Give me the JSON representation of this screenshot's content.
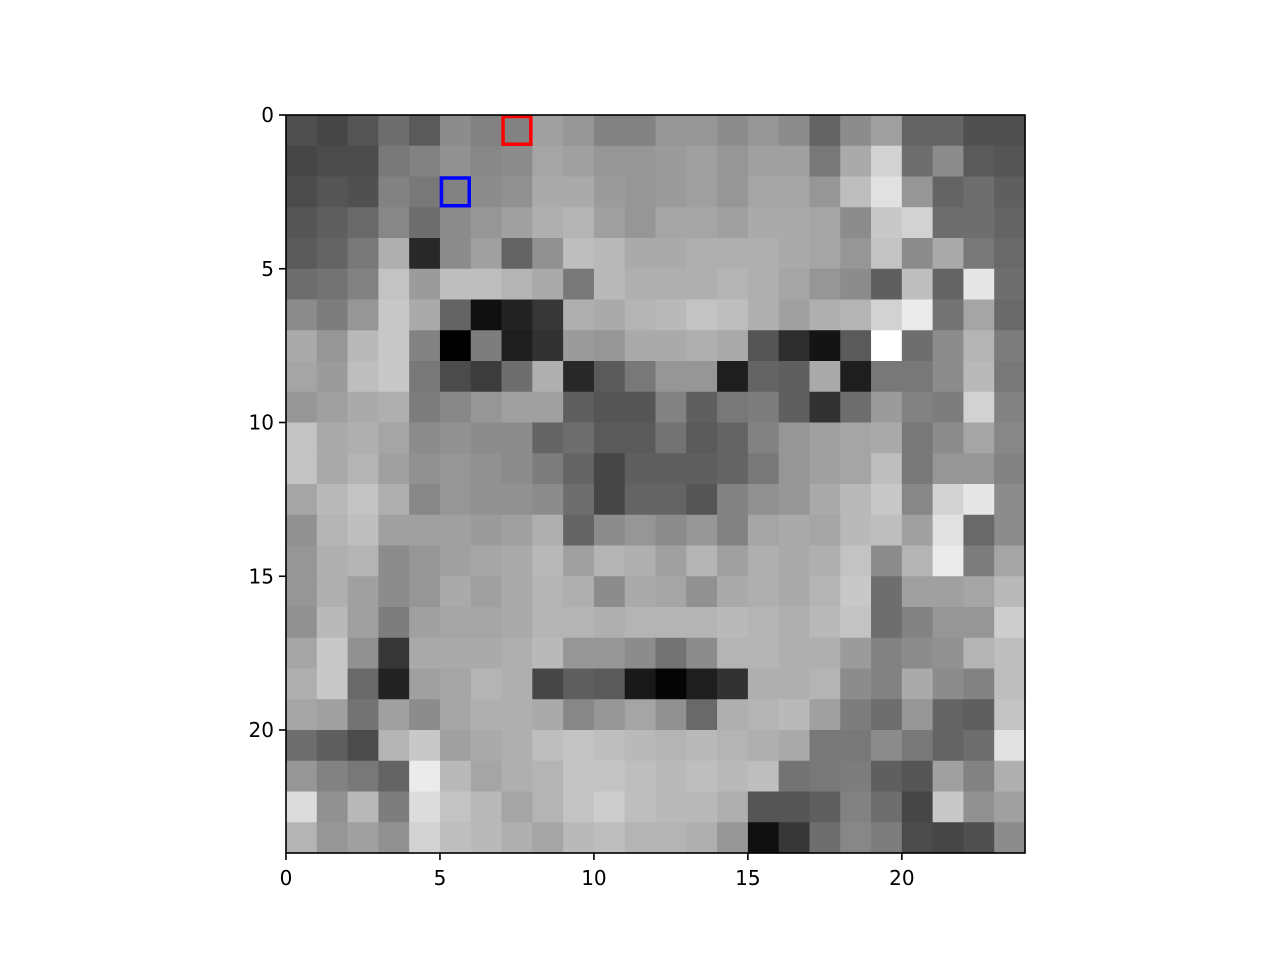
{
  "chart_data": {
    "type": "heatmap",
    "colormap": "gray",
    "value_range": [
      0,
      255
    ],
    "grid": false,
    "xlim": [
      0,
      24
    ],
    "ylim": [
      24,
      0
    ],
    "x_ticks": [
      0,
      5,
      10,
      15,
      20
    ],
    "y_ticks": [
      0,
      5,
      10,
      15,
      20
    ],
    "x_tick_labels": [
      "0",
      "5",
      "10",
      "15",
      "20"
    ],
    "y_tick_labels": [
      "0",
      "5",
      "10",
      "15",
      "20"
    ],
    "highlights": [
      {
        "row": 0,
        "col": 7,
        "color": "#ff0000"
      },
      {
        "row": 2,
        "col": 5,
        "color": "#0000ff"
      }
    ],
    "pixels": [
      [
        80,
        70,
        85,
        110,
        90,
        140,
        130,
        130,
        160,
        150,
        130,
        130,
        150,
        150,
        140,
        150,
        140,
        100,
        140,
        160,
        100,
        100,
        80,
        80
      ],
      [
        70,
        75,
        75,
        120,
        130,
        145,
        135,
        140,
        165,
        160,
        150,
        150,
        155,
        160,
        150,
        160,
        160,
        120,
        170,
        210,
        110,
        140,
        90,
        85
      ],
      [
        75,
        85,
        80,
        130,
        120,
        130,
        140,
        145,
        170,
        170,
        155,
        150,
        155,
        160,
        150,
        165,
        165,
        150,
        190,
        225,
        150,
        100,
        110,
        95
      ],
      [
        85,
        95,
        105,
        135,
        110,
        140,
        150,
        160,
        175,
        180,
        160,
        150,
        165,
        165,
        160,
        170,
        170,
        165,
        140,
        200,
        210,
        110,
        110,
        100
      ],
      [
        90,
        100,
        120,
        175,
        40,
        140,
        160,
        100,
        145,
        190,
        185,
        170,
        170,
        175,
        175,
        175,
        170,
        165,
        150,
        195,
        140,
        170,
        120,
        105
      ],
      [
        110,
        115,
        130,
        195,
        155,
        190,
        190,
        180,
        170,
        120,
        185,
        175,
        175,
        175,
        180,
        175,
        165,
        150,
        140,
        95,
        190,
        100,
        230,
        110
      ],
      [
        140,
        125,
        150,
        200,
        170,
        100,
        15,
        35,
        55,
        175,
        170,
        180,
        185,
        195,
        190,
        175,
        160,
        175,
        180,
        210,
        235,
        115,
        165,
        105
      ],
      [
        170,
        150,
        185,
        200,
        130,
        0,
        125,
        30,
        50,
        155,
        150,
        170,
        170,
        175,
        170,
        85,
        45,
        20,
        90,
        255,
        110,
        140,
        180,
        125
      ],
      [
        165,
        155,
        190,
        200,
        120,
        75,
        60,
        110,
        175,
        40,
        90,
        120,
        150,
        150,
        30,
        100,
        95,
        170,
        30,
        120,
        120,
        140,
        185,
        120
      ],
      [
        150,
        160,
        170,
        175,
        125,
        135,
        150,
        160,
        160,
        95,
        85,
        85,
        130,
        95,
        120,
        125,
        95,
        50,
        110,
        155,
        130,
        125,
        210,
        130
      ],
      [
        195,
        170,
        175,
        165,
        140,
        145,
        140,
        140,
        100,
        110,
        90,
        90,
        115,
        90,
        100,
        130,
        150,
        160,
        165,
        170,
        120,
        140,
        165,
        135
      ],
      [
        195,
        170,
        180,
        160,
        145,
        150,
        145,
        140,
        125,
        100,
        70,
        95,
        95,
        95,
        100,
        120,
        150,
        160,
        165,
        190,
        120,
        150,
        150,
        130
      ],
      [
        165,
        185,
        195,
        175,
        135,
        150,
        145,
        145,
        140,
        110,
        70,
        100,
        100,
        85,
        130,
        145,
        150,
        170,
        185,
        200,
        135,
        210,
        230,
        140
      ],
      [
        145,
        180,
        190,
        160,
        160,
        160,
        155,
        160,
        175,
        100,
        140,
        150,
        140,
        150,
        130,
        165,
        170,
        165,
        185,
        190,
        160,
        225,
        105,
        140
      ],
      [
        150,
        175,
        180,
        140,
        150,
        160,
        165,
        170,
        185,
        160,
        180,
        175,
        160,
        180,
        160,
        175,
        170,
        175,
        195,
        140,
        180,
        235,
        125,
        165
      ],
      [
        150,
        175,
        160,
        140,
        150,
        170,
        160,
        170,
        180,
        175,
        140,
        170,
        165,
        145,
        170,
        175,
        170,
        180,
        200,
        110,
        160,
        160,
        165,
        185
      ],
      [
        145,
        185,
        160,
        125,
        160,
        165,
        165,
        170,
        180,
        180,
        175,
        180,
        180,
        180,
        185,
        180,
        175,
        185,
        195,
        110,
        130,
        150,
        150,
        205
      ],
      [
        165,
        200,
        145,
        55,
        170,
        170,
        170,
        175,
        185,
        150,
        150,
        140,
        115,
        140,
        180,
        180,
        175,
        175,
        155,
        130,
        140,
        145,
        180,
        190
      ],
      [
        175,
        200,
        105,
        35,
        160,
        165,
        180,
        175,
        70,
        95,
        90,
        25,
        5,
        30,
        50,
        175,
        175,
        180,
        140,
        130,
        170,
        140,
        130,
        190
      ],
      [
        165,
        160,
        115,
        160,
        140,
        165,
        175,
        175,
        170,
        135,
        150,
        165,
        145,
        105,
        175,
        180,
        185,
        160,
        125,
        110,
        150,
        100,
        95,
        195
      ],
      [
        110,
        95,
        75,
        180,
        200,
        160,
        170,
        175,
        190,
        195,
        190,
        185,
        180,
        185,
        180,
        175,
        170,
        120,
        120,
        140,
        120,
        100,
        110,
        225
      ],
      [
        150,
        130,
        120,
        100,
        235,
        185,
        165,
        175,
        180,
        195,
        195,
        190,
        185,
        190,
        185,
        190,
        115,
        120,
        125,
        95,
        85,
        160,
        130,
        175
      ],
      [
        220,
        145,
        185,
        125,
        220,
        195,
        185,
        165,
        180,
        195,
        205,
        190,
        185,
        185,
        175,
        85,
        85,
        95,
        130,
        110,
        70,
        200,
        145,
        160
      ],
      [
        180,
        150,
        160,
        145,
        210,
        190,
        185,
        175,
        165,
        185,
        190,
        180,
        180,
        175,
        150,
        15,
        55,
        110,
        135,
        125,
        75,
        70,
        80,
        140
      ]
    ]
  }
}
